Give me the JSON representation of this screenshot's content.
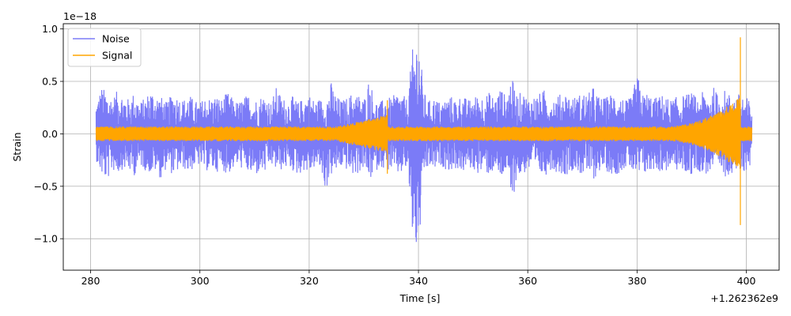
{
  "chart_data": {
    "type": "line",
    "xlabel": "Time [s]",
    "ylabel": "Strain",
    "x_offset_label": "+1.262362e9",
    "y_scale_label": "1e−18",
    "xlim": [
      275,
      406
    ],
    "ylim": [
      -1.3,
      1.05
    ],
    "x_ticks": [
      280,
      300,
      320,
      340,
      360,
      380,
      400
    ],
    "x_tick_labels": [
      "280",
      "300",
      "320",
      "340",
      "360",
      "380",
      "400"
    ],
    "y_ticks": [
      -1.0,
      -0.5,
      0.0,
      0.5,
      1.0
    ],
    "y_tick_labels": [
      "−1.0",
      "−0.5",
      "0.0",
      "0.5",
      "1.0"
    ],
    "grid": true,
    "legend_position": "top-left",
    "series": [
      {
        "name": "Noise",
        "color": "#7b7bf7",
        "x_range": [
          281,
          401
        ],
        "envelope_upper": [
          0.3,
          0.45,
          0.4,
          0.35,
          0.42,
          0.38,
          0.33,
          0.4,
          0.3,
          0.35,
          0.43,
          0.38,
          0.35,
          0.3,
          0.4,
          0.36,
          0.33,
          0.38,
          0.32,
          0.3,
          0.36,
          0.34,
          0.37,
          0.33,
          0.4,
          0.34,
          0.3,
          0.35,
          0.38,
          0.32,
          0.36,
          0.38,
          0.3,
          0.45,
          0.35,
          0.32,
          0.36,
          0.3,
          0.35,
          0.38,
          0.32,
          0.34,
          0.3,
          0.5,
          0.36,
          0.32,
          0.35,
          0.4,
          0.38,
          0.33,
          0.55,
          0.32,
          0.3,
          0.36,
          0.34,
          0.4,
          0.38,
          0.33,
          0.85,
          0.95,
          0.4,
          0.32,
          0.35,
          0.3,
          0.34,
          0.36,
          0.33,
          0.38,
          0.32,
          0.35,
          0.38,
          0.36,
          0.4,
          0.34,
          0.45,
          0.36,
          0.55,
          0.38,
          0.4,
          0.35,
          0.36,
          0.38,
          0.42,
          0.34,
          0.36,
          0.38,
          0.4,
          0.35,
          0.36,
          0.4,
          0.38,
          0.45,
          0.36,
          0.34,
          0.38,
          0.4,
          0.36,
          0.32,
          0.35,
          0.58,
          0.38,
          0.4,
          0.34,
          0.36,
          0.38,
          0.32,
          0.35,
          0.36,
          0.38,
          0.4,
          0.34,
          0.4,
          0.38,
          0.45,
          0.36,
          0.42,
          0.38,
          0.36,
          0.4,
          0.35,
          0.3
        ],
        "envelope_lower": [
          -0.25,
          -0.4,
          -0.45,
          -0.35,
          -0.38,
          -0.33,
          -0.36,
          -0.4,
          -0.3,
          -0.35,
          -0.38,
          -0.36,
          -0.45,
          -0.3,
          -0.4,
          -0.36,
          -0.33,
          -0.38,
          -0.32,
          -0.3,
          -0.36,
          -0.34,
          -0.37,
          -0.33,
          -0.4,
          -0.34,
          -0.3,
          -0.35,
          -0.38,
          -0.42,
          -0.36,
          -0.38,
          -0.3,
          -0.35,
          -0.35,
          -0.32,
          -0.36,
          -0.4,
          -0.35,
          -0.38,
          -0.32,
          -0.34,
          -0.55,
          -0.4,
          -0.36,
          -0.32,
          -0.35,
          -0.4,
          -0.38,
          -0.33,
          -0.45,
          -0.38,
          -0.3,
          -0.36,
          -0.34,
          -0.4,
          -0.38,
          -0.33,
          -1.05,
          -1.18,
          -0.4,
          -0.32,
          -0.35,
          -0.3,
          -0.34,
          -0.36,
          -0.33,
          -0.38,
          -0.32,
          -0.35,
          -0.38,
          -0.36,
          -0.4,
          -0.34,
          -0.45,
          -0.36,
          -0.7,
          -0.42,
          -0.4,
          -0.35,
          -0.36,
          -0.38,
          -0.42,
          -0.34,
          -0.36,
          -0.38,
          -0.4,
          -0.35,
          -0.36,
          -0.4,
          -0.38,
          -0.45,
          -0.36,
          -0.34,
          -0.38,
          -0.4,
          -0.36,
          -0.32,
          -0.35,
          -0.45,
          -0.38,
          -0.4,
          -0.34,
          -0.36,
          -0.38,
          -0.32,
          -0.35,
          -0.36,
          -0.38,
          -0.4,
          -0.34,
          -0.4,
          -0.38,
          -0.35,
          -0.36,
          -0.42,
          -0.38,
          -0.36,
          -0.4,
          -0.35,
          -0.3
        ]
      },
      {
        "name": "Signal",
        "color": "#ffa500",
        "x_range": [
          281,
          401
        ],
        "baseline_amplitude": 0.07,
        "events": [
          {
            "x": 334.3,
            "upper": 0.32,
            "lower": -0.38
          },
          {
            "x": 398.9,
            "upper": 0.92,
            "lower": -0.87
          }
        ]
      }
    ]
  }
}
